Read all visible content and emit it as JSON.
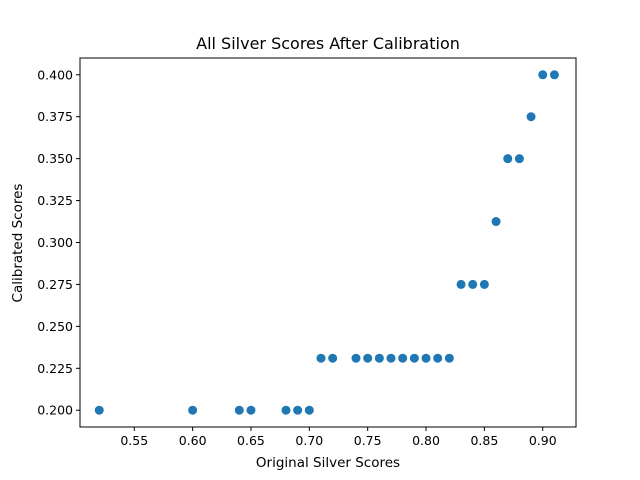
{
  "chart_data": {
    "type": "scatter",
    "title": "All Silver Scores After Calibration",
    "xlabel": "Original Silver Scores",
    "ylabel": "Calibrated Scores",
    "xlim": [
      0.5035,
      0.9285
    ],
    "ylim": [
      0.19,
      0.41
    ],
    "xticks": [
      0.55,
      0.6,
      0.65,
      0.7,
      0.75,
      0.8,
      0.85,
      0.9
    ],
    "xtick_labels": [
      "0.55",
      "0.60",
      "0.65",
      "0.70",
      "0.75",
      "0.80",
      "0.85",
      "0.90"
    ],
    "yticks": [
      0.2,
      0.225,
      0.25,
      0.275,
      0.3,
      0.325,
      0.35,
      0.375,
      0.4
    ],
    "ytick_labels": [
      "0.200",
      "0.225",
      "0.250",
      "0.275",
      "0.300",
      "0.325",
      "0.350",
      "0.375",
      "0.400"
    ],
    "grid": false,
    "marker_color": "#1f77b4",
    "points": [
      {
        "x": 0.52,
        "y": 0.2
      },
      {
        "x": 0.6,
        "y": 0.2
      },
      {
        "x": 0.64,
        "y": 0.2
      },
      {
        "x": 0.65,
        "y": 0.2
      },
      {
        "x": 0.68,
        "y": 0.2
      },
      {
        "x": 0.69,
        "y": 0.2
      },
      {
        "x": 0.7,
        "y": 0.2
      },
      {
        "x": 0.71,
        "y": 0.231
      },
      {
        "x": 0.72,
        "y": 0.231
      },
      {
        "x": 0.74,
        "y": 0.231
      },
      {
        "x": 0.75,
        "y": 0.231
      },
      {
        "x": 0.76,
        "y": 0.231
      },
      {
        "x": 0.77,
        "y": 0.231
      },
      {
        "x": 0.78,
        "y": 0.231
      },
      {
        "x": 0.79,
        "y": 0.231
      },
      {
        "x": 0.8,
        "y": 0.231
      },
      {
        "x": 0.81,
        "y": 0.231
      },
      {
        "x": 0.82,
        "y": 0.231
      },
      {
        "x": 0.83,
        "y": 0.275
      },
      {
        "x": 0.84,
        "y": 0.275
      },
      {
        "x": 0.85,
        "y": 0.275
      },
      {
        "x": 0.86,
        "y": 0.3125
      },
      {
        "x": 0.87,
        "y": 0.35
      },
      {
        "x": 0.88,
        "y": 0.35
      },
      {
        "x": 0.89,
        "y": 0.375
      },
      {
        "x": 0.9,
        "y": 0.4
      },
      {
        "x": 0.91,
        "y": 0.4
      }
    ]
  }
}
